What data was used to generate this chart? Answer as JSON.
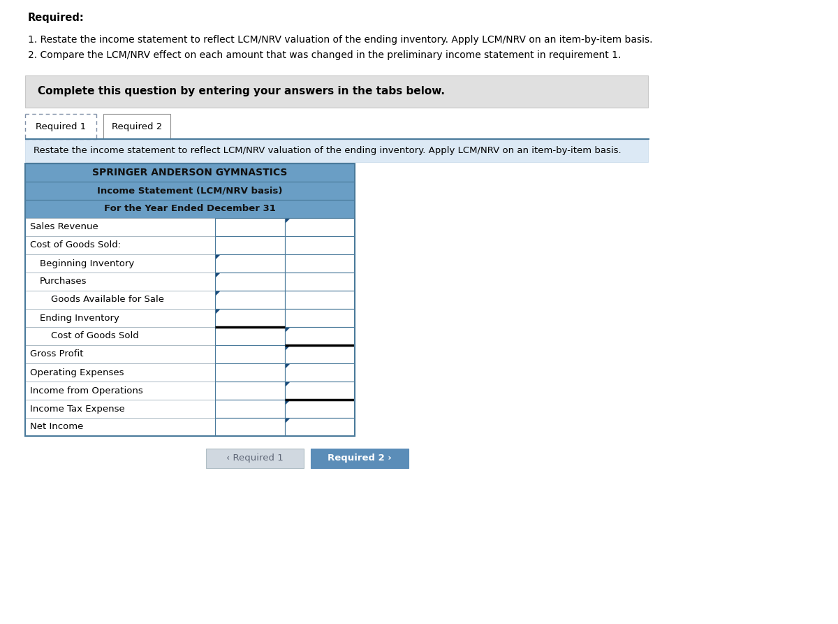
{
  "required_bold": "Required:",
  "req1_text": "1. Restate the income statement to reflect LCM/NRV valuation of the ending inventory. Apply LCM/NRV on an item-by-item basis.",
  "req2_text": "2. Compare the LCM/NRV effect on each amount that was changed in the preliminary income statement in requirement 1.",
  "complete_text": "Complete this question by entering your answers in the tabs below.",
  "tab1": "Required 1",
  "tab2": "Required 2",
  "restate_text": "Restate the income statement to reflect LCM/NRV valuation of the ending inventory. Apply LCM/NRV on an item-by-item basis.",
  "company": "SPRINGER ANDERSON GYMNASTICS",
  "stmt_title": "Income Statement (LCM/NRV basis)",
  "period": "For the Year Ended December 31",
  "rows": [
    {
      "label": "Sales Revenue",
      "indent": 0,
      "col1": false,
      "col2": true,
      "thick_top": false,
      "thick_bot": false
    },
    {
      "label": "Cost of Goods Sold:",
      "indent": 0,
      "col1": false,
      "col2": false,
      "thick_top": false,
      "thick_bot": false
    },
    {
      "label": "Beginning Inventory",
      "indent": 1,
      "col1": true,
      "col2": false,
      "thick_top": false,
      "thick_bot": false
    },
    {
      "label": "Purchases",
      "indent": 1,
      "col1": true,
      "col2": false,
      "thick_top": false,
      "thick_bot": false
    },
    {
      "label": "Goods Available for Sale",
      "indent": 2,
      "col1": true,
      "col2": false,
      "thick_top": false,
      "thick_bot": false
    },
    {
      "label": "Ending Inventory",
      "indent": 1,
      "col1": true,
      "col2": false,
      "thick_top": false,
      "thick_bot": true
    },
    {
      "label": "Cost of Goods Sold",
      "indent": 2,
      "col1": false,
      "col2": true,
      "thick_top": false,
      "thick_bot": true
    },
    {
      "label": "Gross Profit",
      "indent": 0,
      "col1": false,
      "col2": true,
      "thick_top": false,
      "thick_bot": false
    },
    {
      "label": "Operating Expenses",
      "indent": 0,
      "col1": false,
      "col2": true,
      "thick_top": false,
      "thick_bot": false
    },
    {
      "label": "Income from Operations",
      "indent": 0,
      "col1": false,
      "col2": true,
      "thick_top": false,
      "thick_bot": true
    },
    {
      "label": "Income Tax Expense",
      "indent": 0,
      "col1": false,
      "col2": true,
      "thick_top": false,
      "thick_bot": false
    },
    {
      "label": "Net Income",
      "indent": 0,
      "col1": false,
      "col2": true,
      "thick_top": false,
      "thick_bot": false
    }
  ],
  "header_bg": "#6a9ec5",
  "header_border": "#4a7a9b",
  "cell_bg": "#ffffff",
  "gray_box_bg": "#e0e0e0",
  "restate_bg": "#dce9f5",
  "nav_btn1_bg": "#d0d8e0",
  "nav_btn1_text": "#606878",
  "nav_btn2_bg": "#5b8db8",
  "nav_btn2_text": "#ffffff",
  "tri_color": "#1a4a7a"
}
